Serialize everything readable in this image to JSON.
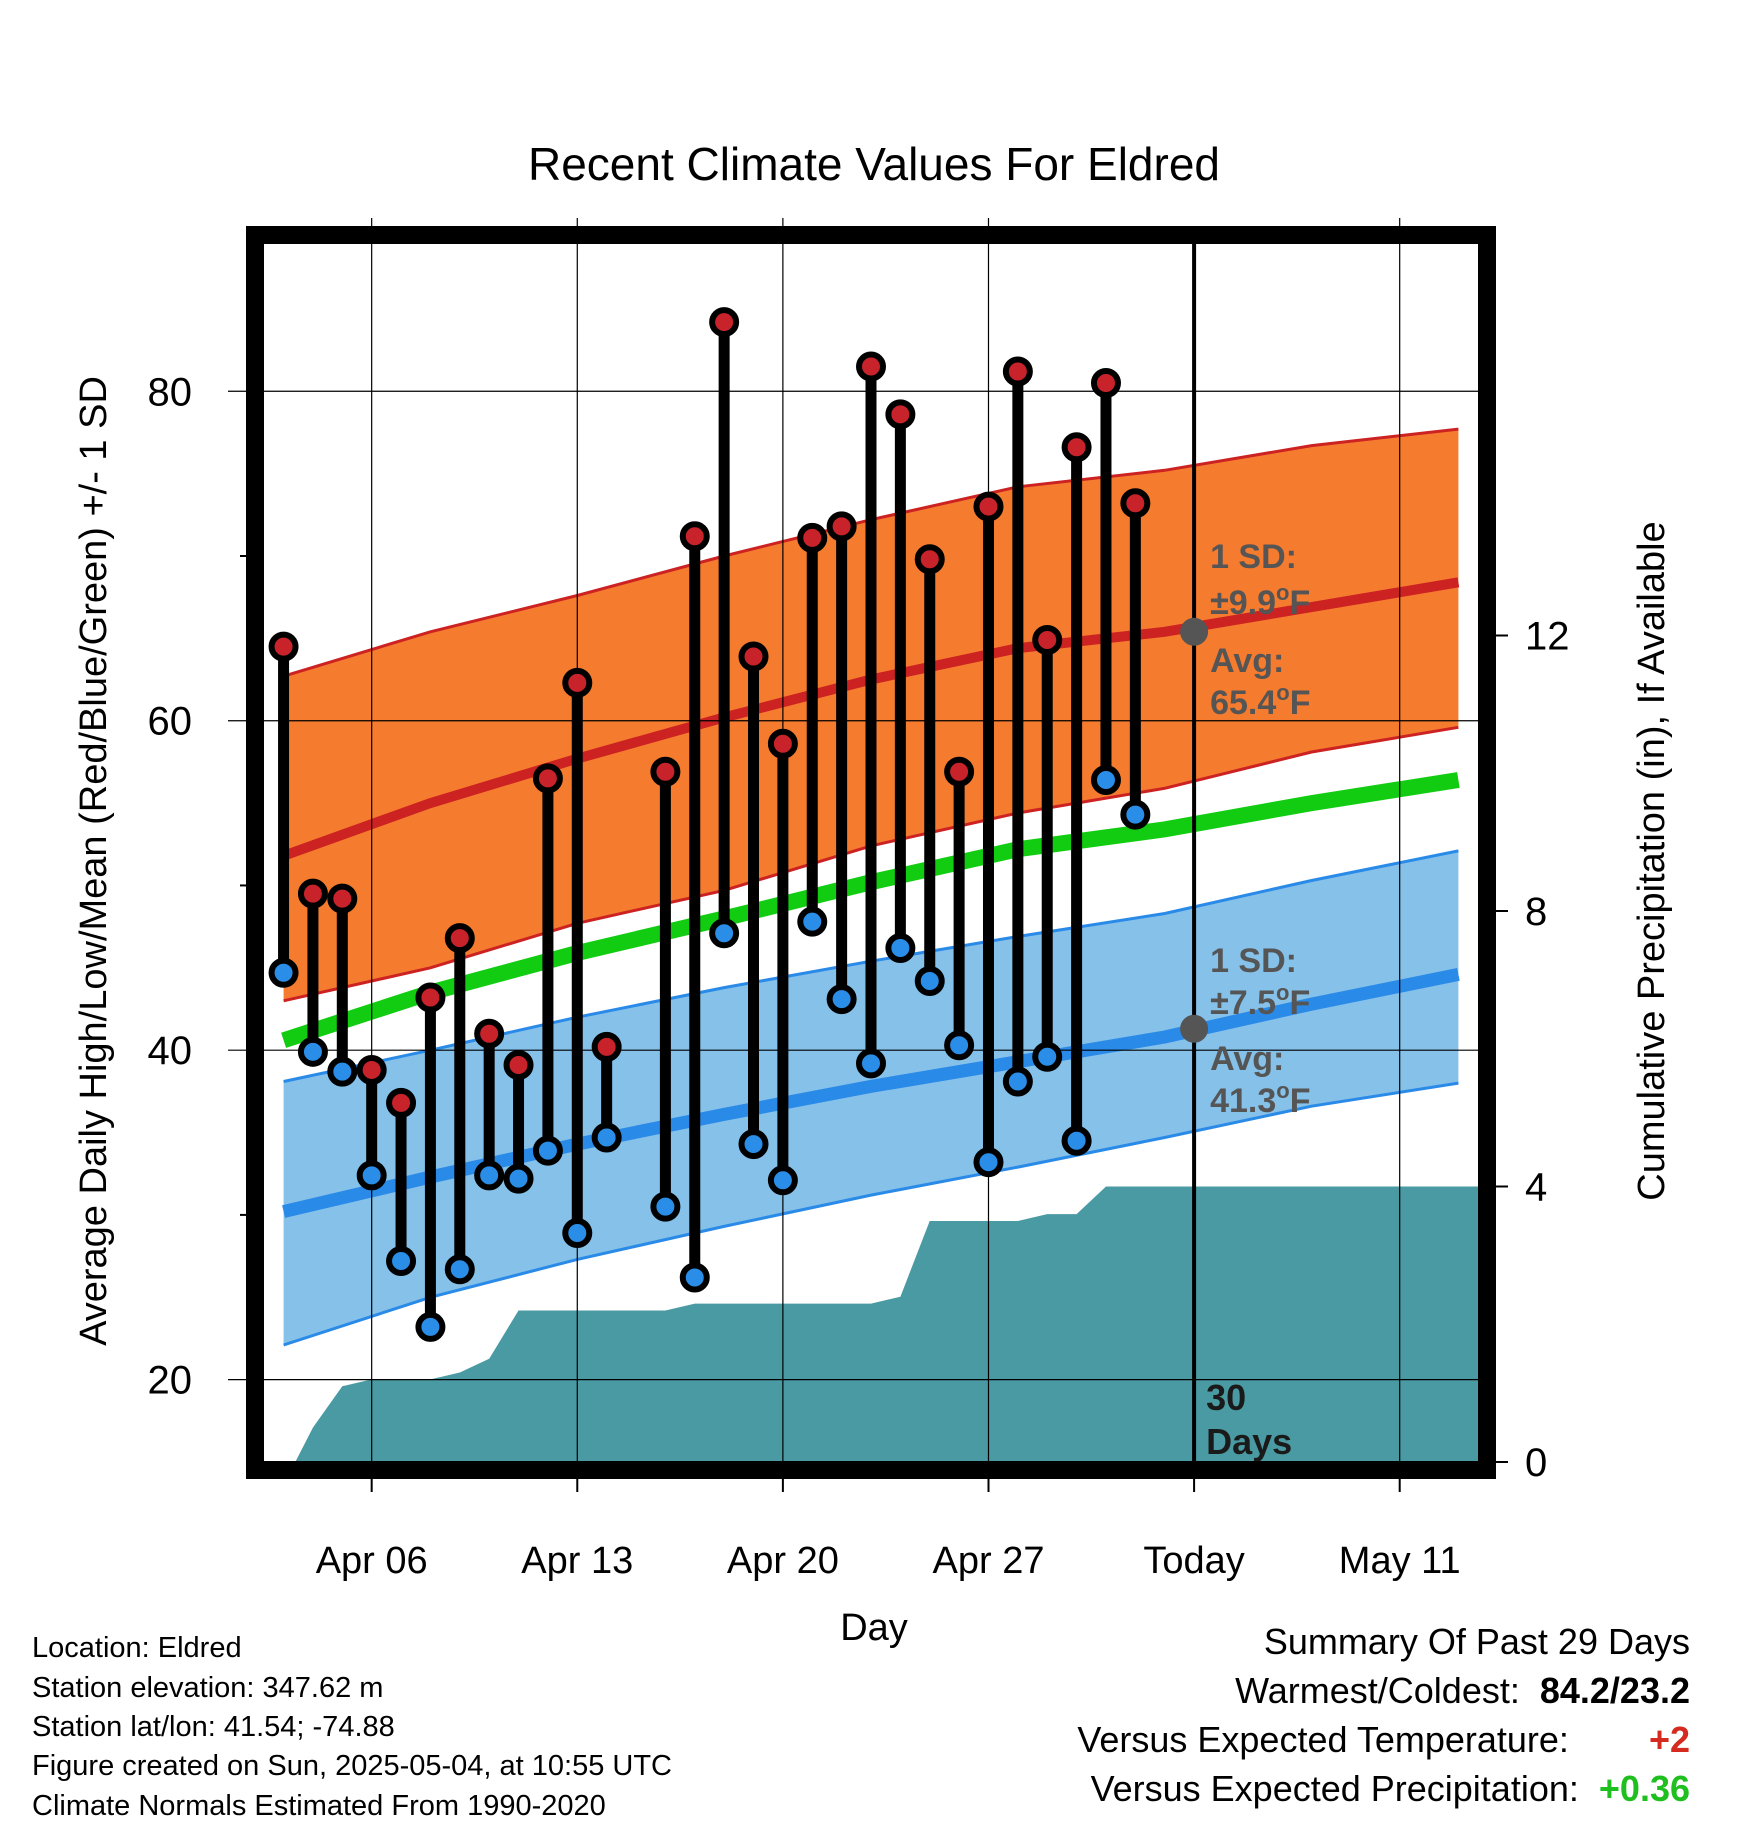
{
  "chart_data": {
    "type": "line",
    "title": "Recent Climate Values For Eldred",
    "xlabel": "Day",
    "ylabel": "Average Daily High/Low/Mean (Red/Blue/Green) +/- 1 SD",
    "y2label": "Cumulative Precipitation (in), If Available",
    "xlim_day": [
      -0.7,
      40.7
    ],
    "ylim": [
      15,
      89
    ],
    "y2lim": [
      0,
      17.7
    ],
    "x_ticks": [
      {
        "day": 3,
        "label": "Apr 06"
      },
      {
        "day": 10,
        "label": "Apr 13"
      },
      {
        "day": 17,
        "label": "Apr 20"
      },
      {
        "day": 24,
        "label": "Apr 27"
      },
      {
        "day": 31,
        "label": "Today"
      },
      {
        "day": 38,
        "label": "May 11"
      }
    ],
    "y_ticks": [
      20,
      40,
      60,
      80
    ],
    "y2_ticks": [
      0,
      4,
      8,
      12
    ],
    "grid": true,
    "today_day": 31,
    "days_label": [
      "30",
      "Days"
    ],
    "colors": {
      "high": "#cc2222",
      "low": "#2a8ae8",
      "mean": "#11cc11",
      "high_band": "#f57b2f",
      "low_band": "#85c1e9",
      "precip": "#4a9aa3",
      "marker_high": "#c8232a",
      "marker_low": "#2a8ee8",
      "annotation": "#555555"
    },
    "normals": {
      "days": [
        0,
        5,
        10,
        15,
        20,
        25,
        30,
        35,
        40
      ],
      "high_avg": [
        51.8,
        55.0,
        57.7,
        60.2,
        62.5,
        64.4,
        65.4,
        66.9,
        68.4
      ],
      "high_sd_upper": [
        62.7,
        65.4,
        67.6,
        70.0,
        72.2,
        74.2,
        75.2,
        76.7,
        77.7
      ],
      "high_sd_lower": [
        43.0,
        45.0,
        47.7,
        49.7,
        52.4,
        54.4,
        55.9,
        58.1,
        59.6
      ],
      "mean": [
        40.6,
        43.5,
        45.9,
        48.0,
        50.2,
        52.2,
        53.4,
        55.0,
        56.4
      ],
      "low_avg": [
        30.2,
        32.3,
        34.3,
        36.1,
        37.8,
        39.3,
        40.8,
        42.8,
        44.6
      ],
      "low_sd_upper": [
        38.1,
        40.0,
        42.0,
        43.8,
        45.4,
        46.9,
        48.3,
        50.3,
        52.1
      ],
      "low_sd_lower": [
        22.1,
        25.0,
        27.3,
        29.3,
        31.2,
        32.9,
        34.7,
        36.6,
        38.0
      ]
    },
    "observations": {
      "days": [
        0,
        1,
        2,
        3,
        4,
        5,
        6,
        7,
        8,
        9,
        10,
        11,
        13,
        14,
        15,
        16,
        17,
        18,
        19,
        20,
        21,
        22,
        23,
        24,
        25,
        26,
        27,
        28,
        29
      ],
      "high": [
        64.5,
        49.5,
        49.2,
        38.8,
        36.8,
        43.2,
        46.8,
        41.0,
        39.1,
        56.5,
        62.3,
        40.2,
        56.9,
        71.2,
        84.2,
        63.9,
        58.6,
        71.1,
        71.8,
        81.5,
        78.6,
        69.8,
        56.9,
        73.0,
        81.2,
        64.9,
        76.6,
        80.5,
        73.2
      ],
      "low": [
        44.7,
        39.9,
        38.7,
        32.4,
        27.2,
        23.2,
        26.7,
        32.4,
        32.2,
        33.9,
        28.9,
        34.7,
        30.5,
        26.2,
        47.1,
        34.3,
        32.1,
        47.8,
        43.1,
        39.2,
        46.2,
        44.2,
        40.3,
        33.2,
        38.1,
        39.6,
        34.5,
        56.4,
        54.3
      ]
    },
    "precip": {
      "days": [
        0.4,
        1.0,
        2.0,
        3.0,
        4.0,
        5.0,
        6.0,
        7.0,
        8.0,
        9.0,
        10.0,
        11.0,
        12.0,
        13.0,
        14.0,
        15.0,
        16.0,
        17.0,
        18.0,
        19.0,
        20.0,
        21.0,
        22.0,
        23.0,
        24.0,
        25.0,
        26.0,
        27.0,
        28.0,
        29.0,
        40.7
      ],
      "values": [
        0.0,
        0.5,
        1.1,
        1.2,
        1.2,
        1.2,
        1.3,
        1.5,
        2.2,
        2.2,
        2.2,
        2.2,
        2.2,
        2.2,
        2.3,
        2.3,
        2.3,
        2.3,
        2.3,
        2.3,
        2.3,
        2.4,
        3.5,
        3.5,
        3.5,
        3.5,
        3.6,
        3.6,
        4.0,
        4.0,
        4.0
      ]
    },
    "annotations": {
      "high_sd_label": "1 SD:",
      "high_sd_value": "±9.9",
      "low_sd_label": "1 SD:",
      "low_sd_value": "±7.5",
      "avg_label": "Avg:",
      "high_avg_value": "65.4",
      "low_avg_value": "41.3",
      "degree": "o",
      "unit": "F"
    }
  },
  "footer": {
    "location": "Location: Eldred",
    "elevation": "Station elevation: 347.62 m",
    "latlon": "Station lat/lon: 41.54; -74.88",
    "created": "Figure created on Sun, 2025-05-04, at 10:55 UTC",
    "normals": "Climate Normals Estimated From 1990-2020"
  },
  "summary": {
    "title": "Summary Of Past 29 Days",
    "warmest_label": "Warmest/Coldest:",
    "warmest_value": "84.2/23.2",
    "temp_label": "Versus Expected Temperature:",
    "temp_value": "+2",
    "temp_color": "#d42a20",
    "precip_label": "Versus Expected Precipitation:",
    "precip_value": "+0.36",
    "precip_color": "#1fbf1f"
  }
}
